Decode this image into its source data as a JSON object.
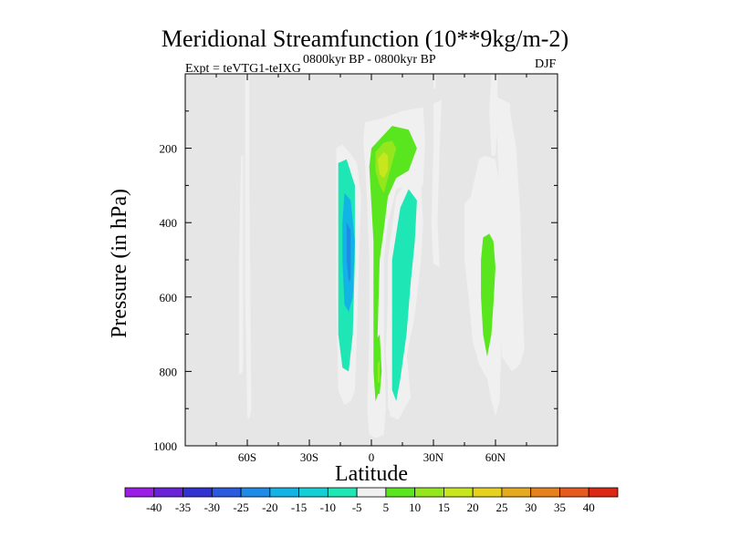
{
  "chart_data": {
    "type": "heatmap",
    "title": "Meridional Streamfunction (10**9kg/m-2)",
    "subtitle_left": "Expt = teVTG1-teIXG",
    "subtitle_center": "0800kyr BP - 0800kyr BP",
    "subtitle_right": "DJF",
    "xlabel": "Latitude",
    "ylabel": "Pressure (in hPa)",
    "xlim": [
      -90,
      90
    ],
    "ylim": [
      1000,
      0
    ],
    "x_ticks": [
      {
        "value": -60,
        "label": "60S"
      },
      {
        "value": -30,
        "label": "30S"
      },
      {
        "value": 0,
        "label": "0"
      },
      {
        "value": 30,
        "label": "30N"
      },
      {
        "value": 60,
        "label": "60N"
      }
    ],
    "y_ticks": [
      {
        "value": 200,
        "label": "200"
      },
      {
        "value": 400,
        "label": "400"
      },
      {
        "value": 600,
        "label": "600"
      },
      {
        "value": 800,
        "label": "800"
      },
      {
        "value": 1000,
        "label": "1000"
      }
    ],
    "colorbar": {
      "labels": [
        "-40",
        "-35",
        "-30",
        "-25",
        "-20",
        "-15",
        "-10",
        "-5",
        "5",
        "10",
        "15",
        "20",
        "25",
        "30",
        "35",
        "40"
      ],
      "colors": [
        "#9a1ee6",
        "#6a22d8",
        "#3232d2",
        "#2a5ade",
        "#1e8ce6",
        "#12b4e6",
        "#14cfd6",
        "#1ee6b4",
        "#f0f0f0",
        "#5ae61e",
        "#96e61e",
        "#c8e61e",
        "#e6d21e",
        "#e6aa1e",
        "#e6821e",
        "#e65a1e",
        "#dc2814"
      ]
    },
    "contours": [
      {
        "label": "-5",
        "points": [
          [
            -63,
            220
          ],
          [
            -62,
            220
          ],
          [
            -62,
            800
          ],
          [
            -64,
            810
          ],
          [
            -64,
            500
          ]
        ]
      },
      {
        "label": "-5",
        "points": [
          [
            -61,
            0
          ],
          [
            -59,
            0
          ],
          [
            -59,
            300
          ],
          [
            -58,
            900
          ],
          [
            -59,
            930
          ],
          [
            -60,
            920
          ],
          [
            -61,
            600
          ],
          [
            -61,
            300
          ]
        ]
      },
      {
        "label": "-5",
        "points": [
          [
            -17,
            200
          ],
          [
            -14,
            190
          ],
          [
            -10,
            215
          ],
          [
            -7,
            240
          ],
          [
            -5,
            330
          ],
          [
            -6,
            500
          ],
          [
            -7,
            700
          ],
          [
            -8,
            850
          ],
          [
            -10,
            880
          ],
          [
            -13,
            890
          ],
          [
            -16,
            850
          ],
          [
            -17,
            600
          ],
          [
            -17,
            400
          ]
        ]
      },
      {
        "label": "-10",
        "points": [
          [
            -16,
            240
          ],
          [
            -12,
            230
          ],
          [
            -8,
            300
          ],
          [
            -8,
            500
          ],
          [
            -9,
            700
          ],
          [
            -11,
            800
          ],
          [
            -14,
            790
          ],
          [
            -16,
            700
          ],
          [
            -16,
            500
          ],
          [
            -16,
            350
          ]
        ]
      },
      {
        "label": "-20",
        "points": [
          [
            -13,
            320
          ],
          [
            -10,
            340
          ],
          [
            -8,
            450
          ],
          [
            -9,
            600
          ],
          [
            -11,
            640
          ],
          [
            -13,
            620
          ],
          [
            -14,
            500
          ],
          [
            -14,
            400
          ]
        ]
      },
      {
        "label": "-25",
        "points": [
          [
            -12,
            400
          ],
          [
            -10,
            420
          ],
          [
            -10,
            550
          ],
          [
            -11,
            560
          ],
          [
            -12,
            500
          ]
        ]
      },
      {
        "label": "-5",
        "points": [
          [
            13,
            450
          ],
          [
            9,
            450
          ],
          [
            7,
            750
          ],
          [
            9,
            920
          ],
          [
            13,
            930
          ],
          [
            16,
            900
          ],
          [
            19,
            870
          ],
          [
            17,
            750
          ],
          [
            20,
            650
          ],
          [
            18,
            550
          ],
          [
            15,
            500
          ]
        ]
      },
      {
        "label": "-5",
        "points": [
          [
            24,
            300
          ],
          [
            20,
            260
          ],
          [
            12,
            330
          ],
          [
            8,
            500
          ],
          [
            8,
            900
          ],
          [
            12,
            930
          ],
          [
            14,
            900
          ],
          [
            17,
            760
          ],
          [
            21,
            650
          ],
          [
            24,
            500
          ],
          [
            25,
            400
          ]
        ]
      },
      {
        "label": "-10",
        "points": [
          [
            22,
            340
          ],
          [
            18,
            310
          ],
          [
            14,
            360
          ],
          [
            10,
            500
          ],
          [
            10,
            850
          ],
          [
            12,
            880
          ],
          [
            14,
            820
          ],
          [
            17,
            700
          ],
          [
            19,
            560
          ],
          [
            21,
            450
          ]
        ]
      },
      {
        "label": "-5",
        "points": [
          [
            30,
            0
          ],
          [
            31,
            0
          ],
          [
            31,
            40
          ],
          [
            30,
            40
          ]
        ]
      },
      {
        "label": "5",
        "points": [
          [
            -3,
            130
          ],
          [
            5,
            120
          ],
          [
            15,
            100
          ],
          [
            25,
            90
          ],
          [
            26,
            180
          ],
          [
            25,
            300
          ],
          [
            22,
            320
          ],
          [
            18,
            300
          ],
          [
            12,
            310
          ],
          [
            8,
            400
          ],
          [
            6,
            500
          ],
          [
            6,
            700
          ],
          [
            7,
            900
          ],
          [
            6,
            970
          ],
          [
            2,
            980
          ],
          [
            -1,
            970
          ],
          [
            -2,
            900
          ],
          [
            -1,
            700
          ],
          [
            -1,
            500
          ],
          [
            -2,
            350
          ],
          [
            -3,
            250
          ],
          [
            -4,
            180
          ]
        ]
      },
      {
        "label": "10",
        "points": [
          [
            0,
            200
          ],
          [
            5,
            170
          ],
          [
            10,
            140
          ],
          [
            18,
            150
          ],
          [
            22,
            200
          ],
          [
            18,
            260
          ],
          [
            12,
            280
          ],
          [
            8,
            330
          ],
          [
            6,
            420
          ],
          [
            4,
            500
          ],
          [
            3,
            700
          ],
          [
            4,
            850
          ],
          [
            2,
            880
          ],
          [
            1,
            800
          ],
          [
            1,
            600
          ],
          [
            1,
            450
          ],
          [
            0,
            350
          ],
          [
            -1,
            250
          ]
        ]
      },
      {
        "label": "15",
        "points": [
          [
            2,
            210
          ],
          [
            6,
            185
          ],
          [
            10,
            180
          ],
          [
            12,
            200
          ],
          [
            10,
            240
          ],
          [
            8,
            280
          ],
          [
            6,
            320
          ],
          [
            4,
            300
          ],
          [
            2,
            260
          ]
        ]
      },
      {
        "label": "20",
        "points": [
          [
            3,
            230
          ],
          [
            6,
            210
          ],
          [
            8,
            220
          ],
          [
            8,
            260
          ],
          [
            6,
            280
          ],
          [
            4,
            270
          ]
        ]
      },
      {
        "label": "10",
        "points": [
          [
            2,
            720
          ],
          [
            4,
            700
          ],
          [
            5,
            800
          ],
          [
            4,
            860
          ],
          [
            2,
            860
          ],
          [
            2,
            800
          ]
        ]
      },
      {
        "label": "15",
        "points": [
          [
            3,
            780
          ],
          [
            4,
            770
          ],
          [
            4,
            830
          ],
          [
            3,
            830
          ]
        ]
      },
      {
        "label": "5",
        "points": [
          [
            30,
            80
          ],
          [
            34,
            70
          ],
          [
            33,
            200
          ],
          [
            32,
            400
          ],
          [
            33,
            520
          ],
          [
            30,
            510
          ],
          [
            29,
            400
          ],
          [
            30,
            200
          ]
        ]
      },
      {
        "label": "5",
        "points": [
          [
            45,
            350
          ],
          [
            48,
            330
          ],
          [
            50,
            280
          ],
          [
            52,
            230
          ],
          [
            55,
            220
          ],
          [
            60,
            230
          ],
          [
            62,
            300
          ],
          [
            64,
            500
          ],
          [
            63,
            700
          ],
          [
            62,
            880
          ],
          [
            60,
            920
          ],
          [
            58,
            880
          ],
          [
            56,
            820
          ],
          [
            54,
            800
          ],
          [
            52,
            780
          ],
          [
            49,
            720
          ],
          [
            47,
            600
          ],
          [
            45,
            500
          ]
        ]
      },
      {
        "label": "5",
        "points": [
          [
            58,
            0
          ],
          [
            61,
            0
          ],
          [
            61,
            140
          ],
          [
            60,
            220
          ],
          [
            58,
            220
          ],
          [
            57,
            100
          ]
        ]
      },
      {
        "label": "5",
        "points": [
          [
            60,
            60
          ],
          [
            67,
            80
          ],
          [
            67,
            100
          ],
          [
            70,
            200
          ],
          [
            72,
            380
          ],
          [
            73,
            600
          ],
          [
            74,
            740
          ],
          [
            72,
            780
          ],
          [
            68,
            800
          ],
          [
            63,
            760
          ],
          [
            63,
            500
          ],
          [
            61,
            200
          ]
        ]
      },
      {
        "label": "10",
        "points": [
          [
            54,
            440
          ],
          [
            57,
            430
          ],
          [
            59,
            450
          ],
          [
            60,
            520
          ],
          [
            59,
            620
          ],
          [
            58,
            700
          ],
          [
            56,
            760
          ],
          [
            54,
            700
          ],
          [
            53,
            600
          ],
          [
            53,
            500
          ]
        ]
      }
    ]
  }
}
